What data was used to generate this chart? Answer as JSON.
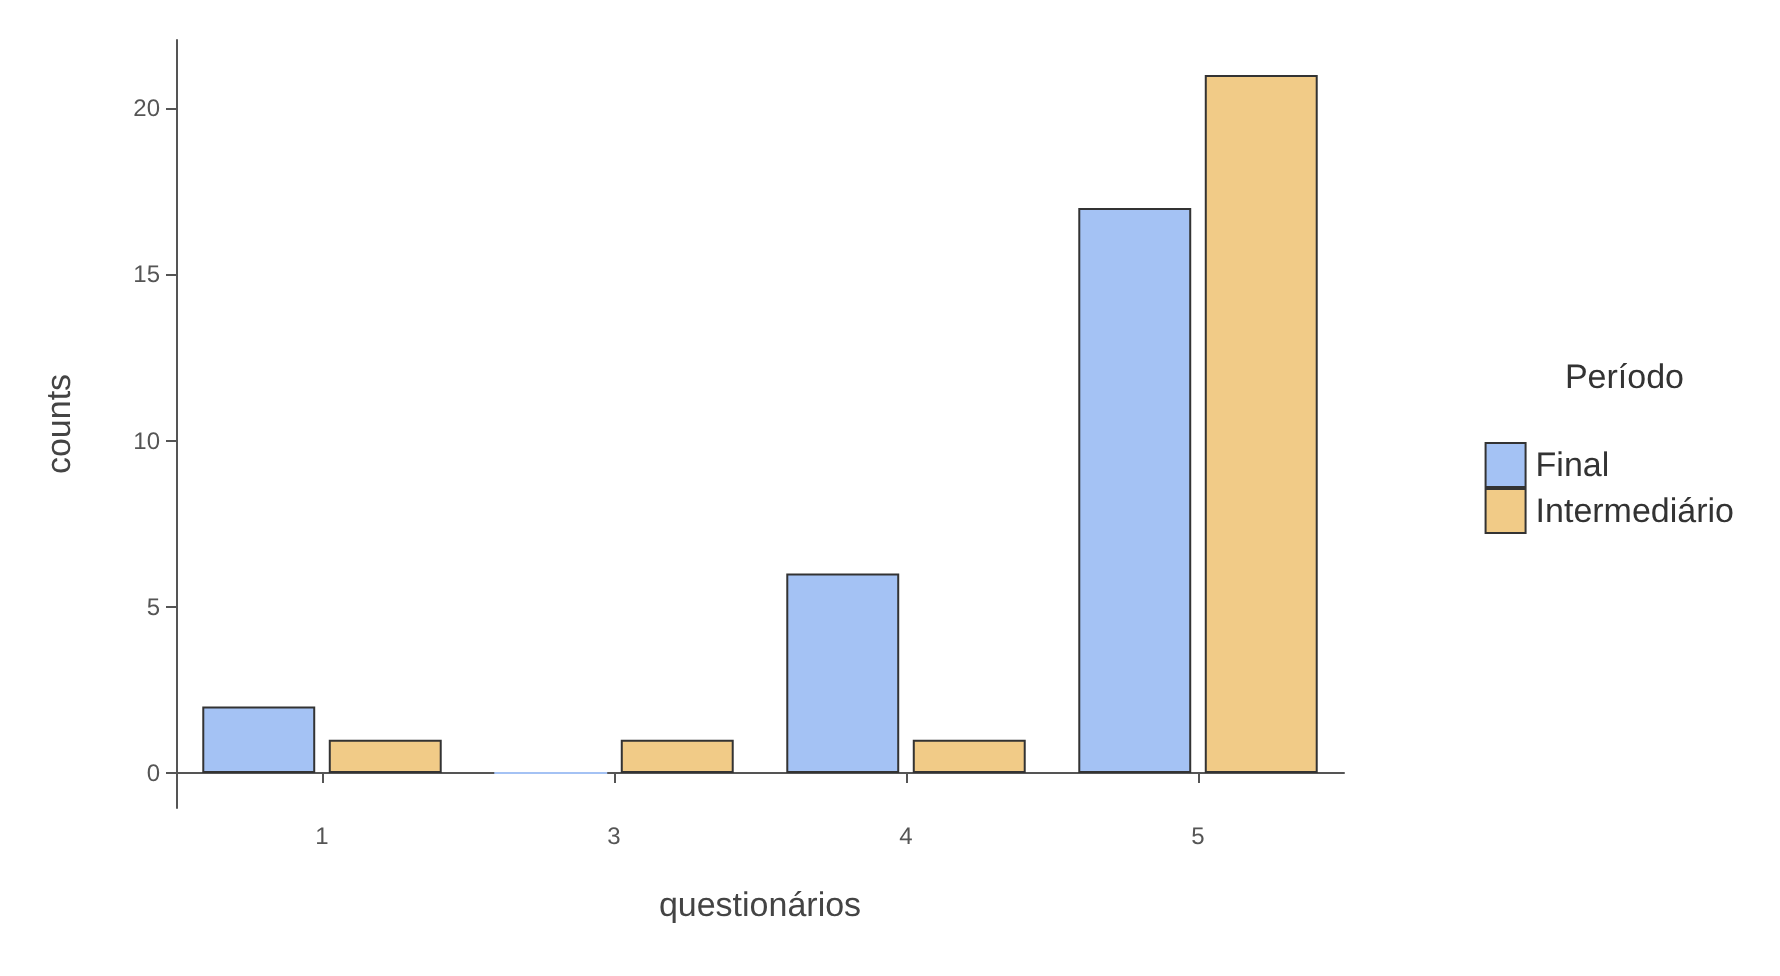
{
  "chart_data": {
    "type": "bar",
    "xlabel": "questionários",
    "ylabel": "counts",
    "legend_title": "Período",
    "categories": [
      "1",
      "3",
      "4",
      "5"
    ],
    "series": [
      {
        "name": "Final",
        "color": "#a4c2f4",
        "values": [
          2,
          0,
          6,
          17
        ]
      },
      {
        "name": "Intermediário",
        "color": "#f1cb87",
        "values": [
          1,
          1,
          1,
          21
        ]
      }
    ],
    "ylim": [
      -1.05,
      22.05
    ],
    "yticks": [
      0,
      5,
      10,
      15,
      20
    ],
    "grid": false,
    "legend": "right"
  }
}
